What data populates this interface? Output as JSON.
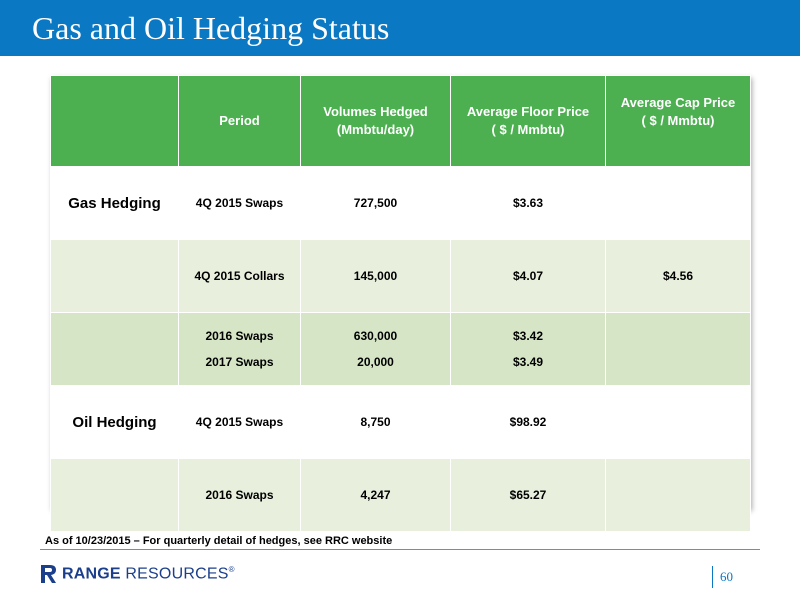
{
  "slide": {
    "title": "Gas and Oil Hedging Status",
    "footnote": "As of 10/23/2015 – For quarterly detail of hedges, see RRC website",
    "page_number": "60"
  },
  "logo": {
    "brand_bold": "RANGE",
    "brand_light": " RESOURCES",
    "mark": "®",
    "icon": "range-resources-r-logo-icon",
    "color": "#1b3f8b"
  },
  "colors": {
    "title_bar": "#0a78c2",
    "header_green": "#4caf50",
    "row_light": "#e8f0dd",
    "row_mid": "#d6e5c6"
  },
  "table": {
    "headers": {
      "category": "",
      "period": "Period",
      "volumes_line1": "Volumes Hedged",
      "volumes_line2": "(Mmbtu/day)",
      "floor_line1": "Average Floor Price",
      "floor_line2": "( $ / Mmbtu)",
      "cap_line1": "Average Cap Price",
      "cap_line2": "( $ / Mmbtu)"
    },
    "rows": [
      {
        "category": "Gas Hedging",
        "period": "4Q 2015 Swaps",
        "volume": "727,500",
        "floor": "$3.63",
        "cap": ""
      },
      {
        "category": "",
        "period": "4Q 2015 Collars",
        "volume": "145,000",
        "floor": "$4.07",
        "cap": "$4.56"
      },
      {
        "category": "",
        "periods": [
          "2016 Swaps",
          "2017 Swaps"
        ],
        "volumes": [
          "630,000",
          "20,000"
        ],
        "floors": [
          "$3.42",
          "$3.49"
        ],
        "cap": ""
      },
      {
        "category": "Oil Hedging",
        "period": "4Q 2015 Swaps",
        "volume": "8,750",
        "floor": "$98.92",
        "cap": ""
      },
      {
        "category": "",
        "period": "2016 Swaps",
        "volume": "4,247",
        "floor": "$65.27",
        "cap": ""
      }
    ]
  }
}
